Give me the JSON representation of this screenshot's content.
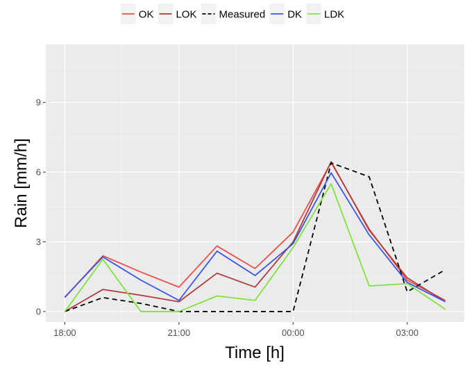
{
  "chart_data": {
    "type": "line",
    "xlabel": "Time [h]",
    "ylabel": "Rain [mm/h]",
    "x": [
      18,
      19,
      20,
      21,
      22,
      23,
      24,
      25,
      26,
      27,
      28
    ],
    "xlim": [
      17.5,
      28.5
    ],
    "ylim": [
      -0.45,
      11.5
    ],
    "x_ticks": [
      {
        "value": 18,
        "label": "18:00"
      },
      {
        "value": 21,
        "label": "21:00"
      },
      {
        "value": 24,
        "label": "00:00"
      },
      {
        "value": 27,
        "label": "03:00"
      }
    ],
    "y_ticks": [
      {
        "value": 0,
        "label": "0"
      },
      {
        "value": 3,
        "label": "3"
      },
      {
        "value": 6,
        "label": "6"
      },
      {
        "value": 9,
        "label": "9"
      }
    ],
    "grid": true,
    "background_color": "#ebebeb",
    "legend_position": "top",
    "series": [
      {
        "name": "OK",
        "color": "#e8504a",
        "dash": "solid",
        "values": [
          0.6,
          2.4,
          1.7,
          1.05,
          2.82,
          1.85,
          3.42,
          6.42,
          3.55,
          1.35,
          0.48
        ]
      },
      {
        "name": "LOK",
        "color": "#b03a3a",
        "dash": "solid",
        "values": [
          0.0,
          0.95,
          0.7,
          0.42,
          1.65,
          1.05,
          3.0,
          6.45,
          3.5,
          1.45,
          0.42
        ]
      },
      {
        "name": "Measured",
        "color": "#000000",
        "dash": "dashed",
        "values": [
          0.0,
          0.6,
          0.35,
          0.0,
          0.0,
          0.0,
          0.0,
          6.4,
          5.8,
          0.85,
          1.8
        ]
      },
      {
        "name": "DK",
        "color": "#3b54e8",
        "dash": "solid",
        "values": [
          0.62,
          2.35,
          1.35,
          0.48,
          2.6,
          1.55,
          2.92,
          5.97,
          3.3,
          1.25,
          0.42
        ]
      },
      {
        "name": "LDK",
        "color": "#7ee33a",
        "dash": "solid",
        "values": [
          0.0,
          2.25,
          0.0,
          0.0,
          0.67,
          0.48,
          2.75,
          5.5,
          1.1,
          1.2,
          0.1
        ]
      }
    ]
  }
}
